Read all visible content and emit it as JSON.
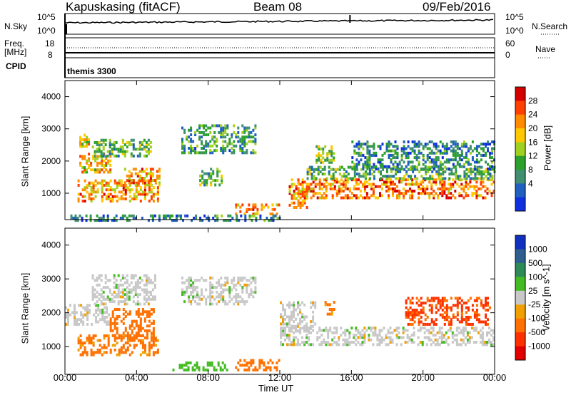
{
  "header": {
    "station": "Kapuskasing (fitACF)",
    "beam": "Beam 08",
    "date": "09/Feb/2016"
  },
  "top_panels": {
    "nsky_label": "N.Sky",
    "nsky_ticks": [
      "10^5",
      "10^0"
    ],
    "nsearch_label": "N.Search",
    "nsearch_ticks": [
      "10^5",
      "10^0"
    ],
    "freq_label": "Freq.",
    "freq_unit": "[MHz]",
    "freq_ticks": [
      "18",
      "8"
    ],
    "nave_label": "Nave",
    "nave_ticks": [
      "60",
      "0"
    ],
    "cpid_label": "CPID",
    "cpid_value": "themis 3300"
  },
  "chart_data": [
    {
      "type": "heatmap",
      "panel": "power",
      "ylabel": "Slant Range [km]",
      "yticks": [
        1000,
        2000,
        3000,
        4000
      ],
      "ylim": [
        180,
        4500
      ],
      "xlabel": "Time UT",
      "xticks": [
        "00:00",
        "04:00",
        "08:00",
        "12:00",
        "16:00",
        "20:00",
        "00:00"
      ],
      "xlim_hours": [
        0,
        24
      ],
      "colorbar": {
        "label": "Power [dB]",
        "ticks": [
          "28",
          "24",
          "20",
          "16",
          "12",
          "8",
          "4"
        ],
        "colors": [
          "#d40000",
          "#ff4000",
          "#ff8c00",
          "#ffc800",
          "#a0d020",
          "#2ca02c",
          "#3f8f70",
          "#2060c0",
          "#1030e0"
        ]
      },
      "regions": [
        {
          "t": [
            0.7,
            5.2
          ],
          "r": [
            800,
            1500
          ],
          "level": 22
        },
        {
          "t": [
            0.8,
            2.5
          ],
          "r": [
            1700,
            2300
          ],
          "level": 20
        },
        {
          "t": [
            1.5,
            4.8
          ],
          "r": [
            2200,
            2700
          ],
          "level": 12
        },
        {
          "t": [
            0.8,
            1.3
          ],
          "r": [
            2500,
            2900
          ],
          "level": 18
        },
        {
          "t": [
            3.3,
            5.3
          ],
          "r": [
            1300,
            1800
          ],
          "level": 22
        },
        {
          "t": [
            6.5,
            10.6
          ],
          "r": [
            2300,
            3200
          ],
          "level": 10
        },
        {
          "t": [
            7.5,
            8.8
          ],
          "r": [
            1300,
            1800
          ],
          "level": 12
        },
        {
          "t": [
            9.5,
            12.0
          ],
          "r": [
            400,
            700
          ],
          "level": 22
        },
        {
          "t": [
            0.3,
            12.0
          ],
          "r": [
            200,
            400
          ],
          "level": 8
        },
        {
          "t": [
            12.5,
            24.0
          ],
          "r": [
            900,
            1500
          ],
          "level": 24
        },
        {
          "t": [
            13.5,
            24.0
          ],
          "r": [
            1500,
            1900
          ],
          "level": 12
        },
        {
          "t": [
            14.0,
            15.0
          ],
          "r": [
            2000,
            2500
          ],
          "level": 14
        },
        {
          "t": [
            16.0,
            24.0
          ],
          "r": [
            1800,
            2700
          ],
          "level": 8
        },
        {
          "t": [
            12.5,
            13.5
          ],
          "r": [
            600,
            1200
          ],
          "level": 22
        }
      ]
    },
    {
      "type": "heatmap",
      "panel": "velocity",
      "ylabel": "Slant Range [km]",
      "yticks": [
        1000,
        2000,
        3000,
        4000
      ],
      "ylim": [
        180,
        4500
      ],
      "xlabel": "Time UT",
      "xticks": [
        "00:00",
        "04:00",
        "08:00",
        "12:00",
        "16:00",
        "20:00",
        "00:00"
      ],
      "xlim_hours": [
        0,
        24
      ],
      "colorbar": {
        "label": "Velocity [m s^-1]",
        "ticks": [
          "1000",
          "500",
          "100",
          "25",
          "-25",
          "-100",
          "-500",
          "-1000"
        ],
        "colors": [
          "#1030c0",
          "#2f5f8f",
          "#2e8b57",
          "#44bb22",
          "#c8c8c8",
          "#f0a000",
          "#ff7000",
          "#ff3000",
          "#e00000"
        ]
      },
      "regions": [
        {
          "t": [
            0.0,
            2.5
          ],
          "r": [
            1700,
            2300
          ],
          "level": 0
        },
        {
          "t": [
            0.7,
            5.2
          ],
          "r": [
            800,
            1400
          ],
          "level": -150
        },
        {
          "t": [
            2.5,
            5.0
          ],
          "r": [
            1300,
            2200
          ],
          "level": -300
        },
        {
          "t": [
            1.5,
            5.0
          ],
          "r": [
            2300,
            3200
          ],
          "level": 0
        },
        {
          "t": [
            6.5,
            10.6
          ],
          "r": [
            2300,
            3100
          ],
          "level": 0
        },
        {
          "t": [
            9.5,
            12.0
          ],
          "r": [
            350,
            700
          ],
          "level": -200
        },
        {
          "t": [
            6.0,
            9.0
          ],
          "r": [
            350,
            600
          ],
          "level": 60
        },
        {
          "t": [
            12.0,
            24.0
          ],
          "r": [
            1100,
            1600
          ],
          "level": 0
        },
        {
          "t": [
            12.0,
            14.0
          ],
          "r": [
            1500,
            2400
          ],
          "level": 0
        },
        {
          "t": [
            19.0,
            23.8
          ],
          "r": [
            1700,
            2500
          ],
          "level": -600
        },
        {
          "t": [
            14.5,
            15.0
          ],
          "r": [
            2000,
            2400
          ],
          "level": -150
        }
      ]
    }
  ]
}
